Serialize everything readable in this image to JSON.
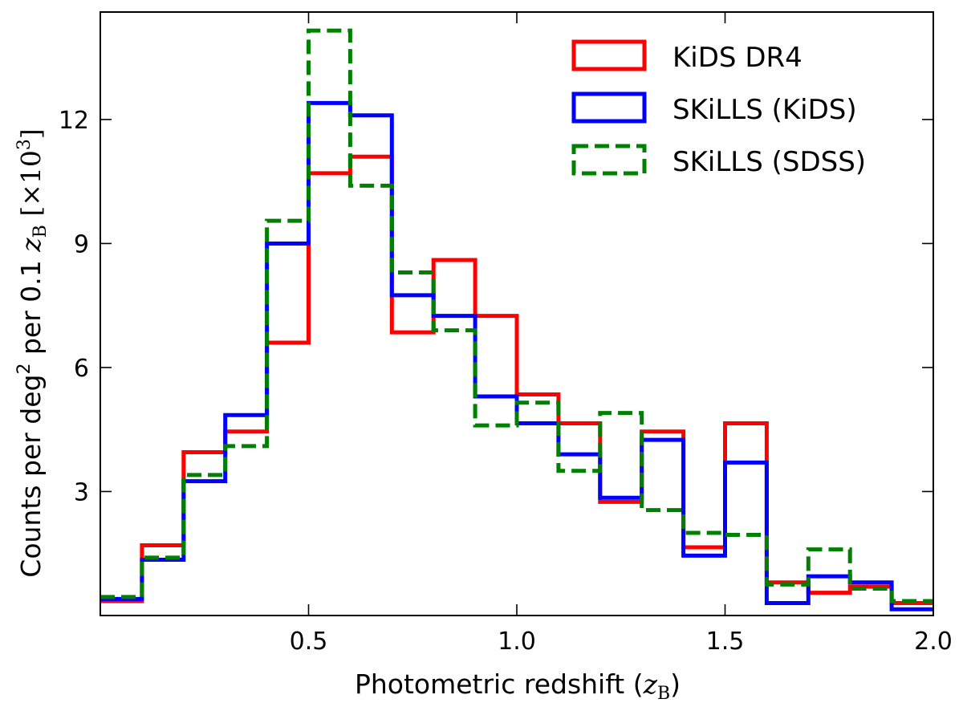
{
  "chart_data": {
    "type": "histogram",
    "title": "",
    "xlabel": {
      "prefix": "Photometric redshift (",
      "var": "z",
      "sub": "B",
      "suffix": ")"
    },
    "ylabel": {
      "prefix": "Counts per deg",
      "sup": "2",
      "mid": " per 0.1 ",
      "var": "z",
      "sub": "B",
      "bracket_open": " [×10",
      "exp": "3",
      "bracket_close": "]"
    },
    "xlim": [
      0.0,
      2.0
    ],
    "ylim": [
      0.0,
      14.6
    ],
    "xticks": [
      0.5,
      1.0,
      1.5,
      2.0
    ],
    "xtick_labels": [
      "0.5",
      "1.0",
      "1.5",
      "2.0"
    ],
    "yticks": [
      3,
      6,
      9,
      12
    ],
    "ytick_labels": [
      "3",
      "6",
      "9",
      "12"
    ],
    "bin_edges": [
      0.0,
      0.1,
      0.2,
      0.3,
      0.4,
      0.5,
      0.6,
      0.7,
      0.8,
      0.9,
      1.0,
      1.1,
      1.2,
      1.3,
      1.4,
      1.5,
      1.6,
      1.7,
      1.8,
      1.9,
      2.0
    ],
    "legend_position": "top-right",
    "series": [
      {
        "name": "KiDS DR4",
        "color": "#ff0000",
        "dash": "solid",
        "values": [
          0.35,
          1.7,
          3.95,
          4.45,
          6.6,
          10.7,
          11.1,
          6.85,
          8.6,
          7.25,
          5.35,
          4.65,
          2.75,
          4.45,
          1.65,
          4.65,
          0.8,
          0.55,
          0.7,
          0.3
        ]
      },
      {
        "name": "SKiLLS (KiDS)",
        "color": "#0000ff",
        "dash": "solid",
        "values": [
          0.4,
          1.35,
          3.25,
          4.85,
          9.0,
          12.4,
          12.1,
          7.75,
          7.25,
          5.3,
          4.65,
          3.9,
          2.85,
          4.25,
          1.45,
          3.7,
          0.3,
          0.95,
          0.8,
          0.15
        ]
      },
      {
        "name": "SKiLLS (SDSS)",
        "color": "#008000",
        "dash": "dashed",
        "values": [
          0.45,
          1.4,
          3.4,
          4.1,
          9.55,
          14.15,
          10.4,
          8.3,
          6.9,
          4.6,
          5.15,
          3.5,
          4.9,
          2.55,
          2.0,
          1.95,
          0.75,
          1.6,
          0.65,
          0.35
        ]
      }
    ]
  }
}
